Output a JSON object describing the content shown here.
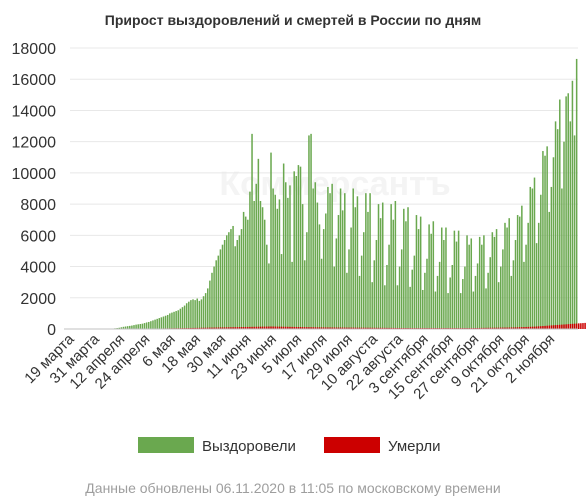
{
  "chart_data": {
    "type": "bar",
    "title": "Прирост выздоровлений и смертей в России по дням",
    "ylim": [
      0,
      18000
    ],
    "yticks": [
      0,
      2000,
      4000,
      6000,
      8000,
      10000,
      12000,
      14000,
      16000,
      18000
    ],
    "xlabel": "",
    "ylabel": "",
    "x_tick_labels": [
      "19 марта",
      "31 марта",
      "12 апреля",
      "24 апреля",
      "6 мая",
      "18 мая",
      "30 мая",
      "11 июня",
      "23 июня",
      "5 июля",
      "17 июля",
      "29 июля",
      "10 августа",
      "22 августа",
      "3 сентября",
      "15 сентября",
      "27 сентября",
      "9 октября",
      "21 октября",
      "2 ноября"
    ],
    "series": [
      {
        "name": "Выздоровели",
        "color": "#6aa84f",
        "values": [
          1,
          1,
          1,
          1,
          1,
          1,
          2,
          2,
          3,
          3,
          5,
          5,
          6,
          8,
          10,
          12,
          14,
          18,
          22,
          25,
          30,
          45,
          60,
          80,
          110,
          140,
          160,
          180,
          200,
          220,
          250,
          280,
          300,
          320,
          340,
          380,
          420,
          450,
          500,
          550,
          600,
          650,
          700,
          750,
          800,
          850,
          900,
          1000,
          1050,
          1100,
          1150,
          1200,
          1300,
          1400,
          1500,
          1650,
          1750,
          1850,
          1900,
          1850,
          1950,
          1800,
          1900,
          2100,
          2300,
          2600,
          3100,
          3600,
          4000,
          4400,
          4700,
          5100,
          5400,
          5700,
          6000,
          6200,
          6400,
          6600,
          5300,
          5700,
          6000,
          6400,
          7500,
          7200,
          7000,
          8800,
          12500,
          8200,
          9300,
          10900,
          8200,
          7800,
          7000,
          5400,
          4200,
          11300,
          9000,
          8600,
          7700,
          8300,
          4800,
          10600,
          9400,
          8400,
          9200,
          4300,
          10100,
          9800,
          10500,
          10400,
          8000,
          4400,
          6200,
          12400,
          12500,
          9000,
          9400,
          8100,
          6700,
          4500,
          6400,
          7400,
          9100,
          8700,
          9300,
          4000,
          5800,
          7300,
          9000,
          7600,
          8700,
          3600,
          5100,
          6500,
          9000,
          7800,
          8500,
          3400,
          4700,
          6200,
          8700,
          7500,
          8700,
          3000,
          4400,
          5700,
          8000,
          7100,
          8100,
          2800,
          4100,
          5400,
          8000,
          7000,
          8200,
          2800,
          4000,
          5100,
          7700,
          6900,
          7800,
          2700,
          3800,
          4700,
          7300,
          6400,
          7200,
          2500,
          3600,
          4500,
          6700,
          6100,
          6900,
          2400,
          3400,
          4300,
          6500,
          5700,
          6500,
          2300,
          3300,
          4100,
          6300,
          5600,
          6300,
          2300,
          3200,
          4000,
          6000,
          5400,
          5800,
          2400,
          3400,
          4200,
          5900,
          5400,
          6000,
          2600,
          3600,
          4600,
          6200,
          5900,
          6400,
          3000,
          4000,
          5100,
          6800,
          6500,
          7100,
          3400,
          4400,
          5700,
          7300,
          7200,
          7900,
          4300,
          5400,
          6800,
          9100,
          9000,
          9700,
          5500,
          6800,
          8600,
          11400,
          11100,
          11700,
          7500,
          9100,
          11000,
          13300,
          12800,
          14700,
          9000,
          12000,
          14900,
          15100,
          13300,
          15900,
          12400,
          17300
        ]
      },
      {
        "name": "Умерли",
        "color": "#cc0000",
        "values": [
          0,
          0,
          0,
          0,
          0,
          0,
          0,
          0,
          0,
          0,
          0,
          0,
          0,
          0,
          0,
          1,
          1,
          1,
          1,
          1,
          2,
          2,
          3,
          3,
          4,
          5,
          6,
          7,
          8,
          9,
          10,
          12,
          13,
          14,
          16,
          18,
          20,
          22,
          24,
          26,
          28,
          30,
          32,
          34,
          36,
          38,
          40,
          42,
          44,
          46,
          48,
          50,
          52,
          55,
          58,
          60,
          62,
          65,
          68,
          70,
          72,
          75,
          78,
          80,
          82,
          85,
          88,
          90,
          92,
          95,
          98,
          100,
          102,
          105,
          108,
          110,
          112,
          115,
          118,
          120,
          122,
          125,
          128,
          130,
          132,
          135,
          138,
          140,
          142,
          145,
          148,
          150,
          152,
          155,
          158,
          160,
          158,
          155,
          152,
          150,
          148,
          145,
          142,
          140,
          138,
          135,
          132,
          130,
          128,
          125,
          122,
          120,
          118,
          116,
          114,
          112,
          110,
          108,
          106,
          104,
          102,
          100,
          99,
          98,
          97,
          96,
          95,
          94,
          93,
          92,
          91,
          90,
          89,
          88,
          87,
          86,
          85,
          84,
          83,
          82,
          81,
          80,
          79,
          78,
          77,
          76,
          75,
          74,
          73,
          72,
          71,
          70,
          69,
          68,
          67,
          66,
          65,
          64,
          63,
          62,
          61,
          60,
          60,
          60,
          60,
          60,
          60,
          60,
          60,
          60,
          60,
          60,
          60,
          60,
          60,
          60,
          60,
          60,
          60,
          60,
          60,
          60,
          60,
          60,
          60,
          60,
          60,
          60,
          60,
          60,
          60,
          62,
          64,
          66,
          68,
          70,
          72,
          74,
          76,
          78,
          80,
          82,
          84,
          86,
          88,
          90,
          92,
          94,
          96,
          98,
          100,
          105,
          110,
          115,
          120,
          125,
          130,
          135,
          140,
          145,
          150,
          160,
          170,
          180,
          190,
          200,
          210,
          220,
          230,
          240,
          250,
          260,
          270,
          280,
          290,
          300,
          310,
          320,
          330,
          340,
          350,
          360,
          370,
          380,
          390,
          400,
          380,
          400
        ]
      }
    ],
    "legend_position": "bottom",
    "watermark": "Коммерсантъ"
  },
  "footer": "Данные обновлены 06.11.2020 в 11:05 по московскому времени"
}
